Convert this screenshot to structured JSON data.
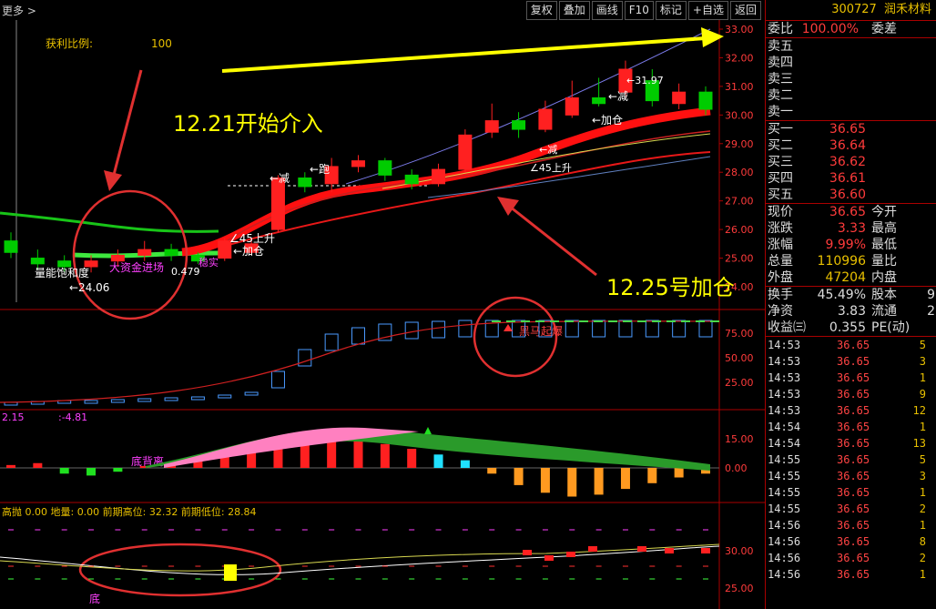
{
  "toolbar": {
    "more_label": "更多 >",
    "buttons": [
      "复权",
      "叠加",
      "画线",
      "F10",
      "标记",
      "+自选",
      "返回"
    ]
  },
  "stock": {
    "code": "300727",
    "name": "润禾材料"
  },
  "quote": {
    "weibi_label": "委比",
    "weibi_value": "100.00%",
    "weicha_label": "委差",
    "sell": [
      {
        "label": "卖五"
      },
      {
        "label": "卖四"
      },
      {
        "label": "卖三"
      },
      {
        "label": "卖二"
      },
      {
        "label": "卖一"
      }
    ],
    "buy": [
      {
        "label": "买一",
        "price": "36.65"
      },
      {
        "label": "买二",
        "price": "36.64"
      },
      {
        "label": "买三",
        "price": "36.62"
      },
      {
        "label": "买四",
        "price": "36.61"
      },
      {
        "label": "买五",
        "price": "36.60"
      }
    ],
    "stats": [
      {
        "l1": "现价",
        "v1": "36.65",
        "l2": "今开",
        "v2": ""
      },
      {
        "l1": "涨跌",
        "v1": "3.33",
        "l2": "最高",
        "v2": ""
      },
      {
        "l1": "涨幅",
        "v1": "9.99%",
        "l2": "最低",
        "v2": ""
      },
      {
        "l1": "总量",
        "v1": "110996",
        "l2": "量比",
        "v2": ""
      },
      {
        "l1": "外盘",
        "v1": "47204",
        "l2": "内盘",
        "v2": ""
      }
    ],
    "stats2": [
      {
        "l1": "换手",
        "v1": "45.49%",
        "l2": "股本",
        "v2": "9"
      },
      {
        "l1": "净资",
        "v1": "3.83",
        "l2": "流通",
        "v2": "2"
      },
      {
        "l1": "收益㈢",
        "v1": "0.355",
        "l2": "PE(动)",
        "v2": ""
      }
    ]
  },
  "ticks": [
    {
      "time": "14:53",
      "price": "36.65",
      "vol": "5"
    },
    {
      "time": "14:53",
      "price": "36.65",
      "vol": "3"
    },
    {
      "time": "14:53",
      "price": "36.65",
      "vol": "1"
    },
    {
      "time": "14:53",
      "price": "36.65",
      "vol": "9"
    },
    {
      "time": "14:53",
      "price": "36.65",
      "vol": "12"
    },
    {
      "time": "14:54",
      "price": "36.65",
      "vol": "1"
    },
    {
      "time": "14:54",
      "price": "36.65",
      "vol": "13"
    },
    {
      "time": "14:55",
      "price": "36.65",
      "vol": "5"
    },
    {
      "time": "14:55",
      "price": "36.65",
      "vol": "3"
    },
    {
      "time": "14:55",
      "price": "36.65",
      "vol": "1"
    },
    {
      "time": "14:55",
      "price": "36.65",
      "vol": "2"
    },
    {
      "time": "14:56",
      "price": "36.65",
      "vol": "1"
    },
    {
      "time": "14:56",
      "price": "36.65",
      "vol": "8"
    },
    {
      "time": "14:56",
      "price": "36.65",
      "vol": "2"
    },
    {
      "time": "14:56",
      "price": "36.65",
      "vol": "1"
    }
  ],
  "chart_annotations": {
    "profit_label": "获利比例:",
    "profit_value": "100",
    "note1": "12.21开始介入",
    "note2": "12.25号加仓",
    "big_fund": "大资金进场",
    "vol_sat": "量能饱和度",
    "low_mark": "←24.06",
    "high_mark": "←31.97",
    "v479": "0.479",
    "up45a": "∠45上升",
    "add_a": "←加仓",
    "up45b": "∠45上升",
    "add_b": "←加仓",
    "minus_a": "←减",
    "run": "←跑",
    "minus_b": "←减",
    "minus_c": "←减",
    "jizhen": "稳实",
    "black_horse": "黑马起爆",
    "diverge": "底背离",
    "macd_l": "2.15",
    "macd_r": ":-4.81",
    "bot_info": "高抛 0.00  地量: 0.00  前期高位: 32.32  前期低位: 28.84",
    "bottom_mark": "底"
  },
  "chart_data": {
    "type": "candlestick",
    "axis_main": [
      "33.00",
      "32.00",
      "31.00",
      "30.00",
      "29.00",
      "28.00",
      "27.00",
      "26.00",
      "25.00",
      "24.00"
    ],
    "axis_ind1": [
      "75.00",
      "50.00",
      "25.00"
    ],
    "axis_macd": [
      "15.00",
      "0.00"
    ],
    "axis_bot": [
      "30.00",
      "25.00"
    ],
    "candles": [
      {
        "o": 25.6,
        "c": 25.2,
        "h": 25.9,
        "l": 25.0
      },
      {
        "o": 25.0,
        "c": 24.8,
        "h": 25.3,
        "l": 24.6
      },
      {
        "o": 24.9,
        "c": 24.7,
        "h": 25.1,
        "l": 24.5
      },
      {
        "o": 24.7,
        "c": 24.9,
        "h": 25.1,
        "l": 24.5
      },
      {
        "o": 24.9,
        "c": 25.1,
        "h": 25.3,
        "l": 24.7
      },
      {
        "o": 25.1,
        "c": 25.3,
        "h": 25.6,
        "l": 24.9
      },
      {
        "o": 25.3,
        "c": 25.1,
        "h": 25.5,
        "l": 24.9
      },
      {
        "o": 25.1,
        "c": 24.9,
        "h": 25.2,
        "l": 24.8
      },
      {
        "o": 25.0,
        "c": 25.6,
        "h": 25.7,
        "l": 24.9
      },
      {
        "o": 25.2,
        "c": 25.5,
        "h": 25.7,
        "l": 25.1
      },
      {
        "o": 26.0,
        "c": 27.8,
        "h": 27.9,
        "l": 25.9
      },
      {
        "o": 27.8,
        "c": 27.5,
        "h": 28.0,
        "l": 27.3
      },
      {
        "o": 27.6,
        "c": 28.2,
        "h": 28.5,
        "l": 27.3
      },
      {
        "o": 28.2,
        "c": 28.4,
        "h": 28.6,
        "l": 28.0
      },
      {
        "o": 28.4,
        "c": 27.9,
        "h": 28.5,
        "l": 27.7
      },
      {
        "o": 27.9,
        "c": 27.6,
        "h": 28.1,
        "l": 27.4
      },
      {
        "o": 27.6,
        "c": 28.1,
        "h": 28.3,
        "l": 27.5
      },
      {
        "o": 28.1,
        "c": 29.3,
        "h": 29.5,
        "l": 28.0
      },
      {
        "o": 29.4,
        "c": 29.8,
        "h": 30.4,
        "l": 29.2
      },
      {
        "o": 29.8,
        "c": 29.5,
        "h": 30.1,
        "l": 29.2
      },
      {
        "o": 29.5,
        "c": 30.2,
        "h": 30.5,
        "l": 29.4
      },
      {
        "o": 30.0,
        "c": 30.6,
        "h": 31.2,
        "l": 29.9
      },
      {
        "o": 30.6,
        "c": 30.4,
        "h": 31.3,
        "l": 30.3
      },
      {
        "o": 30.8,
        "c": 31.6,
        "h": 31.9,
        "l": 30.6
      },
      {
        "o": 31.2,
        "c": 30.5,
        "h": 31.6,
        "l": 30.3
      },
      {
        "o": 30.4,
        "c": 30.8,
        "h": 31.1,
        "l": 30.2
      },
      {
        "o": 30.8,
        "c": 30.2,
        "h": 31.0,
        "l": 30.0
      }
    ]
  }
}
